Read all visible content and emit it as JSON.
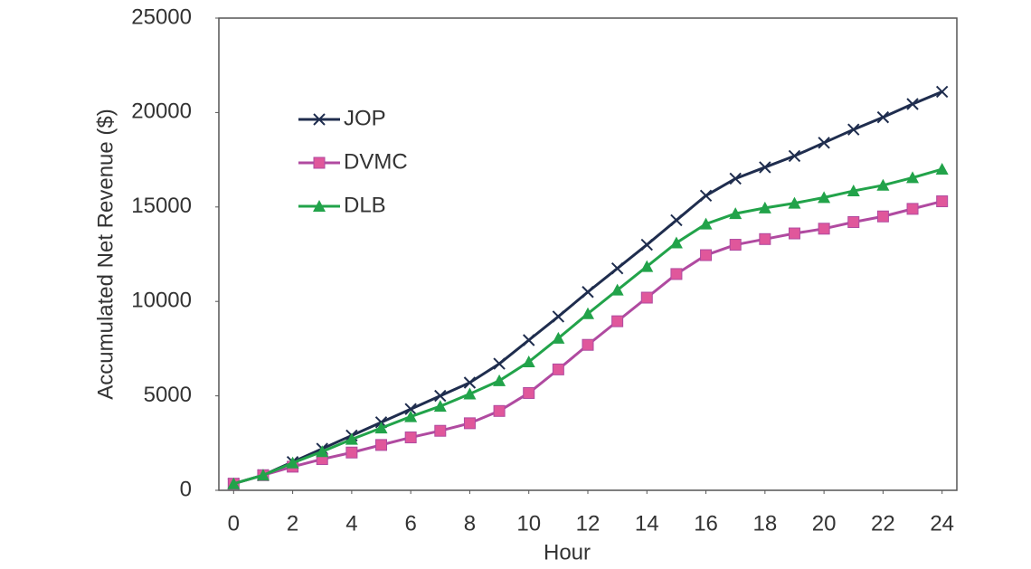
{
  "chart_data": {
    "type": "line",
    "x_label": "Hour",
    "y_label": "Accumulated Net Revenue ($)",
    "x": [
      0,
      1,
      2,
      3,
      4,
      5,
      6,
      7,
      8,
      9,
      10,
      11,
      12,
      13,
      14,
      15,
      16,
      17,
      18,
      19,
      20,
      21,
      22,
      23,
      24
    ],
    "series": [
      {
        "name": "JOP",
        "color": "#1f2d4e",
        "marker": "x",
        "values": [
          350,
          800,
          1500,
          2200,
          2900,
          3600,
          4300,
          5000,
          5700,
          6700,
          7950,
          9200,
          10500,
          11750,
          13000,
          14300,
          15600,
          16500,
          17100,
          17700,
          18400,
          19100,
          19750,
          20450,
          21100
        ]
      },
      {
        "name": "DVMC",
        "color": "#b04aa0",
        "marker": "square",
        "values": [
          350,
          800,
          1250,
          1650,
          2000,
          2400,
          2800,
          3150,
          3550,
          4200,
          5150,
          6400,
          7700,
          8950,
          10200,
          11450,
          12450,
          13000,
          13300,
          13600,
          13850,
          14200,
          14500,
          14900,
          15300
        ]
      },
      {
        "name": "DLB",
        "color": "#22a34a",
        "marker": "triangle",
        "values": [
          350,
          800,
          1450,
          2050,
          2700,
          3300,
          3900,
          4450,
          5100,
          5800,
          6800,
          8050,
          9350,
          10600,
          11850,
          13100,
          14100,
          14650,
          14950,
          15200,
          15500,
          15850,
          16150,
          16550,
          17000
        ]
      }
    ],
    "xlim": [
      -0.5,
      24.5
    ],
    "xticks": [
      0,
      2,
      4,
      6,
      8,
      10,
      12,
      14,
      16,
      18,
      20,
      22,
      24
    ],
    "ylim": [
      0,
      25000
    ],
    "yticks": [
      0,
      5000,
      10000,
      15000,
      20000,
      25000
    ],
    "legend": "upper left",
    "grid": false
  }
}
